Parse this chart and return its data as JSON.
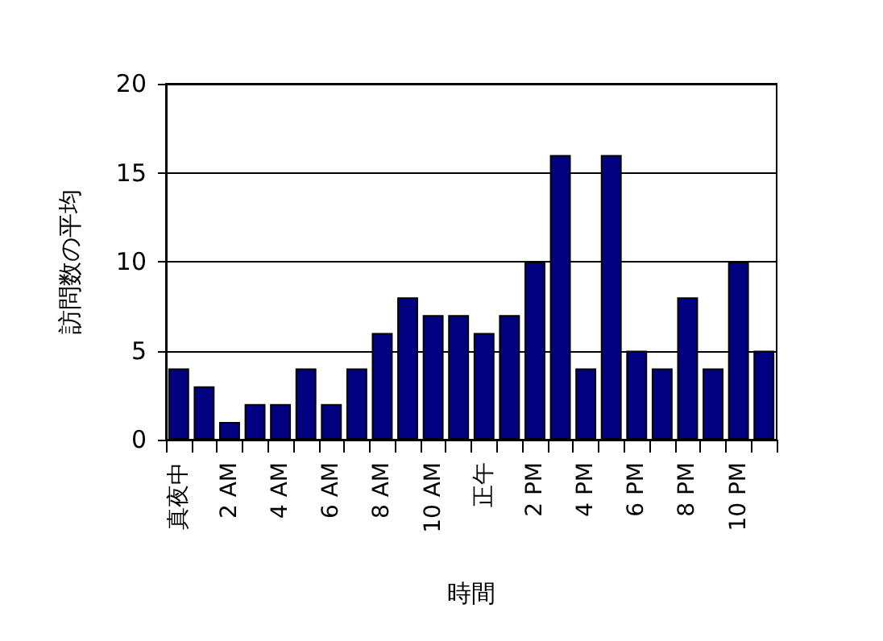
{
  "chart_data": {
    "type": "bar",
    "xlabel": "時間",
    "ylabel": "訪問数の平均",
    "categories": [
      "真夜中",
      null,
      "2 AM",
      null,
      "4 AM",
      null,
      "6 AM",
      null,
      "8 AM",
      null,
      "10 AM",
      null,
      "正午",
      null,
      "2 PM",
      null,
      "4 PM",
      null,
      "6 PM",
      null,
      "8 PM",
      null,
      "10 PM",
      null
    ],
    "values": [
      4,
      3,
      1,
      2,
      2,
      4,
      2,
      4,
      6,
      8,
      7,
      7,
      6,
      7,
      10,
      16,
      4,
      16,
      5,
      4,
      8,
      4,
      10,
      5
    ],
    "color": "#000080",
    "ylim": [
      0,
      20
    ],
    "yticks": [
      0,
      5,
      10,
      15,
      20
    ],
    "grid": "y"
  }
}
